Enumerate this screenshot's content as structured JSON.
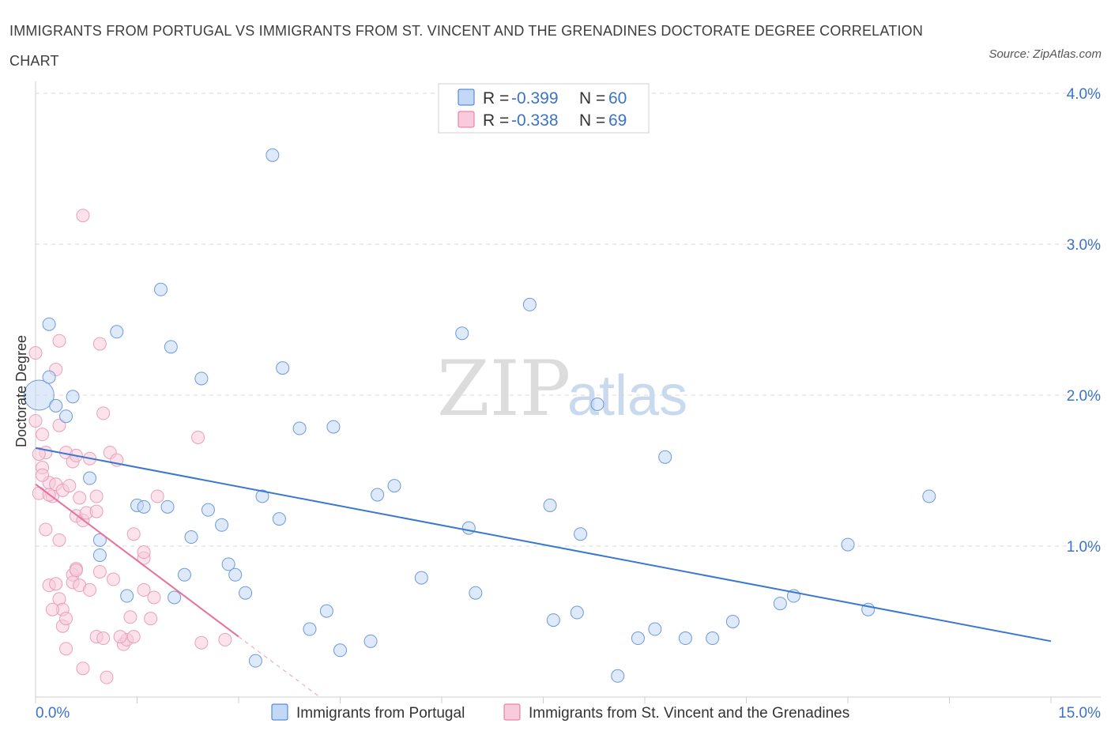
{
  "title": "IMMIGRANTS FROM PORTUGAL VS IMMIGRANTS FROM ST. VINCENT AND THE GRENADINES DOCTORATE DEGREE CORRELATION CHART",
  "source": "Source: ZipAtlas.com",
  "watermark": {
    "zip": "ZIP",
    "atlas": "atlas"
  },
  "colors": {
    "blue": "#3a78d0",
    "blue_fill": "#c2d8f6",
    "pink": "#e8709a",
    "pink_fill": "#f8cadb",
    "axis_label": "#3b73c8"
  },
  "chart_data": {
    "type": "scatter",
    "title": "IMMIGRANTS FROM PORTUGAL VS IMMIGRANTS FROM ST. VINCENT AND THE GRENADINES DOCTORATE DEGREE CORRELATION CHART",
    "xlabel": "",
    "ylabel": "Doctorate Degree",
    "xlim": [
      0,
      15
    ],
    "ylim": [
      0,
      4.0
    ],
    "x_tick_labels": {
      "min": "0.0%",
      "max": "15.0%"
    },
    "y_ticks": [
      1.0,
      2.0,
      3.0,
      4.0
    ],
    "y_tick_labels": [
      "1.0%",
      "2.0%",
      "3.0%",
      "4.0%"
    ],
    "legend": [
      {
        "r_label": "R =",
        "r": "-0.399",
        "n_label": "N =",
        "n": "60"
      },
      {
        "r_label": "R =",
        "r": "-0.338",
        "n_label": "N =",
        "n": "69"
      }
    ],
    "series": [
      {
        "name": "Immigrants from Portugal",
        "color": "#3a78d0",
        "trend": {
          "x0": 0.0,
          "y0": 1.65,
          "x1": 15.0,
          "y1": 0.37
        },
        "points": [
          [
            0.05,
            2.0
          ],
          [
            0.2,
            2.47
          ],
          [
            0.2,
            2.12
          ],
          [
            0.3,
            1.93
          ],
          [
            0.55,
            1.99
          ],
          [
            0.45,
            1.86
          ],
          [
            0.8,
            1.45
          ],
          [
            1.2,
            2.42
          ],
          [
            1.5,
            1.27
          ],
          [
            1.85,
            2.7
          ],
          [
            2.0,
            2.32
          ],
          [
            1.6,
            1.26
          ],
          [
            1.95,
            1.26
          ],
          [
            2.45,
            2.11
          ],
          [
            3.5,
            3.59
          ],
          [
            3.65,
            2.18
          ],
          [
            3.9,
            1.78
          ],
          [
            4.4,
            1.79
          ],
          [
            3.35,
            1.33
          ],
          [
            3.6,
            1.18
          ],
          [
            0.95,
            1.04
          ],
          [
            0.95,
            0.94
          ],
          [
            1.35,
            0.67
          ],
          [
            2.05,
            0.66
          ],
          [
            2.2,
            0.81
          ],
          [
            2.3,
            1.06
          ],
          [
            2.55,
            1.24
          ],
          [
            2.75,
            1.14
          ],
          [
            2.85,
            0.88
          ],
          [
            2.95,
            0.81
          ],
          [
            3.1,
            0.69
          ],
          [
            3.25,
            0.24
          ],
          [
            4.05,
            0.45
          ],
          [
            4.3,
            0.57
          ],
          [
            4.5,
            0.31
          ],
          [
            4.95,
            0.37
          ],
          [
            5.05,
            1.34
          ],
          [
            5.3,
            1.4
          ],
          [
            5.7,
            0.79
          ],
          [
            6.3,
            2.41
          ],
          [
            6.4,
            1.12
          ],
          [
            6.5,
            0.69
          ],
          [
            7.3,
            2.6
          ],
          [
            7.6,
            1.27
          ],
          [
            7.65,
            0.51
          ],
          [
            8.0,
            0.56
          ],
          [
            8.05,
            1.08
          ],
          [
            8.3,
            1.94
          ],
          [
            8.9,
            0.39
          ],
          [
            9.15,
            0.45
          ],
          [
            9.3,
            1.59
          ],
          [
            9.6,
            0.39
          ],
          [
            10.0,
            0.39
          ],
          [
            10.3,
            0.5
          ],
          [
            11.0,
            0.62
          ],
          [
            11.2,
            0.67
          ],
          [
            12.0,
            1.01
          ],
          [
            12.3,
            0.58
          ],
          [
            13.2,
            1.33
          ],
          [
            8.6,
            0.14
          ]
        ]
      },
      {
        "name": "Immigrants from St. Vincent and the Grenadines",
        "color": "#e8709a",
        "trend": {
          "x0": 0.0,
          "y0": 1.41,
          "x1": 3.0,
          "y1": 0.4
        },
        "trend_dashed": {
          "x0": 3.0,
          "y0": 0.4,
          "x1": 4.2,
          "y1": 0.0
        },
        "points": [
          [
            0.0,
            2.28
          ],
          [
            0.0,
            1.83
          ],
          [
            0.1,
            1.74
          ],
          [
            0.15,
            1.62
          ],
          [
            0.1,
            1.52
          ],
          [
            0.05,
            1.35
          ],
          [
            0.2,
            1.42
          ],
          [
            0.25,
            1.33
          ],
          [
            0.3,
            1.41
          ],
          [
            0.3,
            2.17
          ],
          [
            0.35,
            2.36
          ],
          [
            0.35,
            1.8
          ],
          [
            0.4,
            1.37
          ],
          [
            0.35,
            1.04
          ],
          [
            0.45,
            1.62
          ],
          [
            0.5,
            1.4
          ],
          [
            0.55,
            1.56
          ],
          [
            0.6,
            1.6
          ],
          [
            0.65,
            1.32
          ],
          [
            0.6,
            1.2
          ],
          [
            0.7,
            1.17
          ],
          [
            0.75,
            1.22
          ],
          [
            0.8,
            1.58
          ],
          [
            0.9,
            1.33
          ],
          [
            0.95,
            2.34
          ],
          [
            1.0,
            1.88
          ],
          [
            1.1,
            1.62
          ],
          [
            1.2,
            1.57
          ],
          [
            0.15,
            1.11
          ],
          [
            0.2,
            0.74
          ],
          [
            0.3,
            0.75
          ],
          [
            0.35,
            0.65
          ],
          [
            0.4,
            0.58
          ],
          [
            0.4,
            0.47
          ],
          [
            0.45,
            0.52
          ],
          [
            0.45,
            0.32
          ],
          [
            0.55,
            0.81
          ],
          [
            0.55,
            0.76
          ],
          [
            0.6,
            0.85
          ],
          [
            0.65,
            0.74
          ],
          [
            0.7,
            0.19
          ],
          [
            0.8,
            0.71
          ],
          [
            0.9,
            0.4
          ],
          [
            0.95,
            0.83
          ],
          [
            1.0,
            0.39
          ],
          [
            1.05,
            0.13
          ],
          [
            1.15,
            0.78
          ],
          [
            1.3,
            0.35
          ],
          [
            1.35,
            0.38
          ],
          [
            1.4,
            0.53
          ],
          [
            1.45,
            1.08
          ],
          [
            1.45,
            0.4
          ],
          [
            1.6,
            0.92
          ],
          [
            1.6,
            0.96
          ],
          [
            1.6,
            0.71
          ],
          [
            1.7,
            0.52
          ],
          [
            1.75,
            0.66
          ],
          [
            1.8,
            1.33
          ],
          [
            2.4,
            1.72
          ],
          [
            2.45,
            0.36
          ],
          [
            2.8,
            0.38
          ],
          [
            0.7,
            3.19
          ],
          [
            0.05,
            1.61
          ],
          [
            0.1,
            1.47
          ],
          [
            0.2,
            1.34
          ],
          [
            0.6,
            0.84
          ],
          [
            0.9,
            1.23
          ],
          [
            1.25,
            0.4
          ],
          [
            0.25,
            0.58
          ]
        ]
      }
    ]
  },
  "bottom_legend": [
    {
      "label": "Immigrants from Portugal"
    },
    {
      "label": "Immigrants from St. Vincent and the Grenadines"
    }
  ]
}
